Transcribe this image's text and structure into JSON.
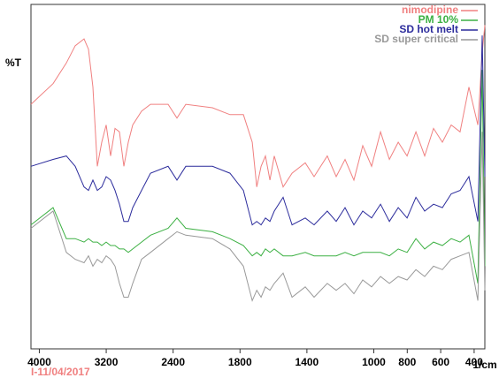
{
  "chart_data": {
    "type": "line",
    "y_label": "%T",
    "x_label": "1/cm",
    "footnote": "I-11/04/2017",
    "xlim": [
      4100,
      336
    ],
    "x_scale_break": 2000,
    "xticks": [
      4000,
      3200,
      2400,
      1800,
      1400,
      1000,
      800,
      600,
      400
    ],
    "ylim": [
      0,
      100
    ],
    "legend": "upper right",
    "x": [
      4100,
      3835,
      3677,
      3571,
      3465,
      3412,
      3359,
      3306,
      3253,
      3201,
      3148,
      3095,
      3042,
      2989,
      2936,
      2883,
      2777,
      2671,
      2460,
      2354,
      2248,
      1965,
      1860,
      1780,
      1727,
      1700,
      1674,
      1648,
      1621,
      1595,
      1542,
      1489,
      1410,
      1357,
      1278,
      1225,
      1172,
      1119,
      1066,
      1013,
      960,
      907,
      854,
      801,
      748,
      696,
      643,
      590,
      537,
      484,
      431,
      378,
      352,
      336
    ],
    "series": [
      {
        "name": "nimodipine",
        "color": "#f08080",
        "values": [
          71,
          77,
          83,
          88,
          90,
          87,
          76,
          53,
          60,
          65,
          56,
          64,
          63,
          53,
          60,
          65,
          69,
          71,
          71,
          67,
          71,
          70,
          68,
          68,
          60,
          47,
          53,
          56,
          49,
          56,
          47,
          51,
          54,
          50,
          56,
          50,
          55,
          49,
          59,
          53,
          63,
          55,
          60,
          56,
          63,
          56,
          64,
          60,
          65,
          63,
          76,
          65,
          86,
          94
        ]
      },
      {
        "name": "PM 10%",
        "color": "#3cb043",
        "values": [
          36,
          41,
          32,
          32,
          31,
          32,
          31,
          31,
          30,
          31,
          30,
          30,
          29,
          29,
          28,
          29,
          31,
          33,
          35,
          38,
          35,
          34,
          32,
          30,
          27,
          28,
          27,
          29,
          28,
          29,
          27,
          27,
          28,
          27,
          27,
          27,
          28,
          27,
          28,
          28,
          28,
          27,
          29,
          28,
          32,
          29,
          31,
          30,
          32,
          31,
          33,
          19,
          81,
          24
        ]
      },
      {
        "name": "SD hot melt",
        "color": "#2c2c9c",
        "values": [
          53,
          55,
          56,
          53,
          47,
          46,
          49,
          46,
          47,
          50,
          49,
          46,
          42,
          37,
          37,
          41,
          46,
          51,
          53,
          49,
          53,
          53,
          51,
          46,
          36,
          37,
          36,
          38,
          37,
          40,
          44,
          36,
          38,
          36,
          40,
          37,
          41,
          36,
          40,
          38,
          42,
          37,
          41,
          38,
          44,
          40,
          42,
          41,
          45,
          46,
          50,
          37,
          91,
          50
        ]
      },
      {
        "name": "SD super critical",
        "color": "#999999",
        "values": [
          35,
          40,
          28,
          26,
          25,
          27,
          24,
          26,
          25,
          27,
          26,
          24,
          19,
          15,
          15,
          19,
          26,
          28,
          32,
          34,
          33,
          32,
          29,
          24,
          14,
          17,
          15,
          18,
          17,
          19,
          22,
          15,
          18,
          15,
          19,
          17,
          19,
          16,
          20,
          18,
          21,
          19,
          21,
          20,
          23,
          21,
          24,
          23,
          26,
          27,
          28,
          14,
          63,
          17
        ]
      }
    ]
  }
}
